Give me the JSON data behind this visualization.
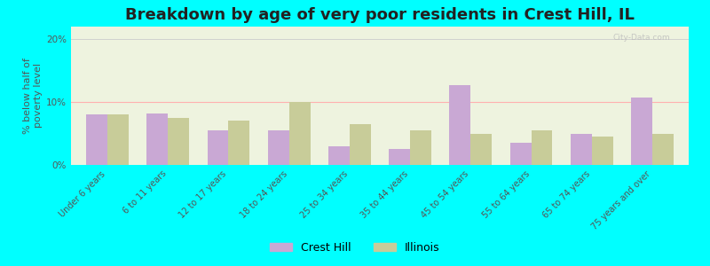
{
  "title": "Breakdown by age of very poor residents in Crest Hill, IL",
  "ylabel": "% below half of\npoverty level",
  "categories": [
    "Under 6 years",
    "6 to 11 years",
    "12 to 17 years",
    "18 to 24 years",
    "25 to 34 years",
    "35 to 44 years",
    "45 to 54 years",
    "55 to 64 years",
    "65 to 74 years",
    "75 years and over"
  ],
  "crest_hill": [
    8.0,
    8.2,
    5.5,
    5.5,
    3.0,
    2.5,
    12.7,
    3.5,
    5.0,
    10.7
  ],
  "illinois": [
    8.0,
    7.5,
    7.0,
    10.0,
    6.5,
    5.5,
    5.0,
    5.5,
    4.5,
    5.0
  ],
  "crest_hill_color": "#c9a8d4",
  "illinois_color": "#c8cc99",
  "background_color": "#00ffff",
  "plot_bg_color": "#eef3df",
  "ylim": [
    0,
    22
  ],
  "yticks": [
    0,
    10,
    20
  ],
  "ytick_labels": [
    "0%",
    "10%",
    "20%"
  ],
  "bar_width": 0.35,
  "title_fontsize": 13,
  "axis_label_fontsize": 8,
  "tick_fontsize": 7.5,
  "legend_label_crest_hill": "Crest Hill",
  "legend_label_illinois": "Illinois",
  "watermark": "City-Data.com"
}
